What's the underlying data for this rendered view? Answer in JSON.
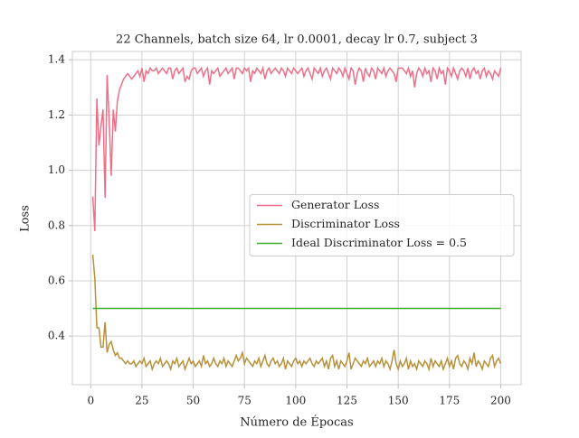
{
  "chart_data": {
    "type": "line",
    "title": "22 Channels, batch size 64, lr 0.0001, decay lr 0.7, subject 3",
    "x_label": "Número de Épocas",
    "y_label": "Loss",
    "x": [
      1,
      2,
      3,
      4,
      5,
      6,
      7,
      8,
      9,
      10,
      11,
      12,
      13,
      14,
      15,
      16,
      17,
      18,
      19,
      20,
      21,
      22,
      23,
      24,
      25,
      26,
      27,
      28,
      29,
      30,
      31,
      32,
      33,
      34,
      35,
      36,
      37,
      38,
      39,
      40,
      41,
      42,
      43,
      44,
      45,
      46,
      47,
      48,
      49,
      50,
      51,
      52,
      53,
      54,
      55,
      56,
      57,
      58,
      59,
      60,
      61,
      62,
      63,
      64,
      65,
      66,
      67,
      68,
      69,
      70,
      71,
      72,
      73,
      74,
      75,
      76,
      77,
      78,
      79,
      80,
      81,
      82,
      83,
      84,
      85,
      86,
      87,
      88,
      89,
      90,
      91,
      92,
      93,
      94,
      95,
      96,
      97,
      98,
      99,
      100,
      101,
      102,
      103,
      104,
      105,
      106,
      107,
      108,
      109,
      110,
      111,
      112,
      113,
      114,
      115,
      116,
      117,
      118,
      119,
      120,
      121,
      122,
      123,
      124,
      125,
      126,
      127,
      128,
      129,
      130,
      131,
      132,
      133,
      134,
      135,
      136,
      137,
      138,
      139,
      140,
      141,
      142,
      143,
      144,
      145,
      146,
      147,
      148,
      149,
      150,
      151,
      152,
      153,
      154,
      155,
      156,
      157,
      158,
      159,
      160,
      161,
      162,
      163,
      164,
      165,
      166,
      167,
      168,
      169,
      170,
      171,
      172,
      173,
      174,
      175,
      176,
      177,
      178,
      179,
      180,
      181,
      182,
      183,
      184,
      185,
      186,
      187,
      188,
      189,
      190,
      191,
      192,
      193,
      194,
      195,
      196,
      197,
      198,
      199,
      200
    ],
    "series": [
      {
        "name": "Generator Loss",
        "color": "#ee6f87",
        "values": [
          0.905,
          0.78,
          1.26,
          1.09,
          1.16,
          1.22,
          0.9,
          1.345,
          1.18,
          0.98,
          1.22,
          1.14,
          1.25,
          1.29,
          1.31,
          1.33,
          1.34,
          1.35,
          1.34,
          1.33,
          1.34,
          1.35,
          1.36,
          1.34,
          1.37,
          1.32,
          1.36,
          1.35,
          1.37,
          1.36,
          1.36,
          1.37,
          1.35,
          1.36,
          1.37,
          1.36,
          1.35,
          1.37,
          1.37,
          1.33,
          1.36,
          1.37,
          1.35,
          1.36,
          1.37,
          1.32,
          1.34,
          1.33,
          1.36,
          1.37,
          1.37,
          1.35,
          1.36,
          1.37,
          1.34,
          1.36,
          1.37,
          1.31,
          1.36,
          1.35,
          1.36,
          1.37,
          1.34,
          1.35,
          1.36,
          1.37,
          1.35,
          1.36,
          1.37,
          1.33,
          1.37,
          1.37,
          1.36,
          1.35,
          1.37,
          1.36,
          1.37,
          1.32,
          1.36,
          1.35,
          1.37,
          1.36,
          1.35,
          1.37,
          1.33,
          1.36,
          1.37,
          1.35,
          1.36,
          1.37,
          1.36,
          1.35,
          1.37,
          1.36,
          1.34,
          1.37,
          1.36,
          1.35,
          1.37,
          1.36,
          1.35,
          1.36,
          1.37,
          1.34,
          1.36,
          1.37,
          1.35,
          1.33,
          1.37,
          1.36,
          1.35,
          1.37,
          1.34,
          1.36,
          1.37,
          1.35,
          1.33,
          1.37,
          1.36,
          1.35,
          1.37,
          1.36,
          1.34,
          1.37,
          1.35,
          1.33,
          1.37,
          1.36,
          1.31,
          1.35,
          1.37,
          1.36,
          1.32,
          1.37,
          1.35,
          1.34,
          1.37,
          1.36,
          1.33,
          1.37,
          1.36,
          1.35,
          1.37,
          1.34,
          1.36,
          1.37,
          1.36,
          1.35,
          1.32,
          1.37,
          1.37,
          1.37,
          1.36,
          1.35,
          1.37,
          1.34,
          1.36,
          1.3,
          1.35,
          1.37,
          1.36,
          1.34,
          1.37,
          1.35,
          1.36,
          1.32,
          1.37,
          1.36,
          1.33,
          1.37,
          1.35,
          1.36,
          1.31,
          1.37,
          1.36,
          1.34,
          1.37,
          1.35,
          1.33,
          1.36,
          1.37,
          1.36,
          1.34,
          1.37,
          1.33,
          1.36,
          1.37,
          1.35,
          1.36,
          1.33,
          1.36,
          1.37,
          1.34,
          1.36,
          1.35,
          1.33,
          1.36,
          1.35,
          1.34,
          1.37
        ]
      },
      {
        "name": "Discriminator Loss",
        "color": "#b8913a",
        "values": [
          0.695,
          0.61,
          0.43,
          0.43,
          0.36,
          0.36,
          0.45,
          0.34,
          0.37,
          0.38,
          0.35,
          0.33,
          0.34,
          0.32,
          0.32,
          0.31,
          0.3,
          0.31,
          0.3,
          0.3,
          0.31,
          0.29,
          0.3,
          0.31,
          0.3,
          0.32,
          0.29,
          0.3,
          0.31,
          0.28,
          0.3,
          0.31,
          0.3,
          0.32,
          0.29,
          0.3,
          0.31,
          0.3,
          0.28,
          0.31,
          0.3,
          0.32,
          0.29,
          0.3,
          0.31,
          0.28,
          0.3,
          0.32,
          0.3,
          0.31,
          0.29,
          0.3,
          0.31,
          0.29,
          0.33,
          0.3,
          0.31,
          0.29,
          0.3,
          0.32,
          0.3,
          0.29,
          0.31,
          0.3,
          0.32,
          0.29,
          0.31,
          0.3,
          0.29,
          0.31,
          0.33,
          0.31,
          0.32,
          0.34,
          0.3,
          0.32,
          0.31,
          0.3,
          0.29,
          0.31,
          0.3,
          0.32,
          0.29,
          0.31,
          0.33,
          0.3,
          0.29,
          0.31,
          0.32,
          0.3,
          0.31,
          0.29,
          0.3,
          0.32,
          0.28,
          0.31,
          0.3,
          0.29,
          0.31,
          0.32,
          0.3,
          0.31,
          0.29,
          0.31,
          0.3,
          0.31,
          0.32,
          0.3,
          0.29,
          0.31,
          0.3,
          0.31,
          0.32,
          0.29,
          0.31,
          0.28,
          0.32,
          0.33,
          0.29,
          0.31,
          0.28,
          0.31,
          0.3,
          0.29,
          0.31,
          0.34,
          0.28,
          0.3,
          0.32,
          0.31,
          0.3,
          0.29,
          0.31,
          0.3,
          0.32,
          0.29,
          0.3,
          0.31,
          0.29,
          0.31,
          0.3,
          0.32,
          0.29,
          0.31,
          0.3,
          0.28,
          0.31,
          0.35,
          0.3,
          0.28,
          0.31,
          0.29,
          0.3,
          0.32,
          0.28,
          0.31,
          0.29,
          0.3,
          0.28,
          0.31,
          0.3,
          0.29,
          0.31,
          0.3,
          0.28,
          0.32,
          0.29,
          0.31,
          0.3,
          0.29,
          0.31,
          0.28,
          0.3,
          0.32,
          0.29,
          0.31,
          0.28,
          0.32,
          0.33,
          0.3,
          0.29,
          0.31,
          0.3,
          0.28,
          0.32,
          0.3,
          0.34,
          0.29,
          0.31,
          0.3,
          0.28,
          0.31,
          0.3,
          0.29,
          0.32,
          0.33,
          0.29,
          0.31,
          0.32,
          0.3
        ]
      },
      {
        "name": "Ideal Discriminator Loss = 0.5",
        "color": "#3aad2a",
        "x": [
          1,
          200
        ],
        "values": [
          0.5,
          0.5
        ]
      }
    ],
    "xlim": [
      -8.95,
      209.95
    ],
    "ylim": [
      0.224,
      1.43
    ],
    "xticks": [
      0,
      25,
      50,
      75,
      100,
      125,
      150,
      175,
      200
    ],
    "yticks": [
      0.4,
      0.6,
      0.8,
      {
        "value": 1,
        "label": "1.0"
      },
      1.2,
      1.4
    ],
    "grid": true,
    "legend": "center right"
  }
}
